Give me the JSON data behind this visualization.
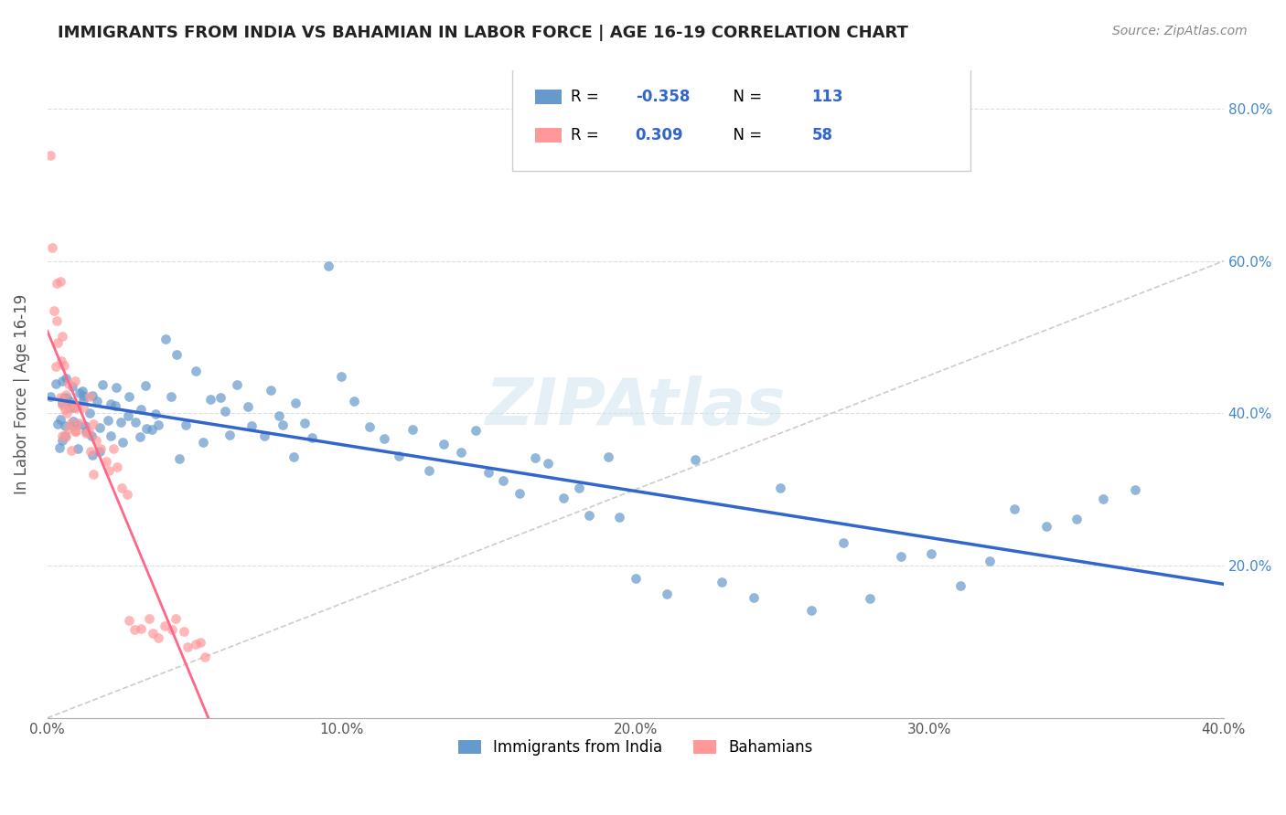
{
  "title": "IMMIGRANTS FROM INDIA VS BAHAMIAN IN LABOR FORCE | AGE 16-19 CORRELATION CHART",
  "source": "Source: ZipAtlas.com",
  "xlabel": "",
  "ylabel": "In Labor Force | Age 16-19",
  "xlim": [
    0.0,
    0.4
  ],
  "ylim": [
    0.0,
    0.85
  ],
  "xtick_labels": [
    "0.0%",
    "10.0%",
    "20.0%",
    "30.0%",
    "40.0%"
  ],
  "xtick_vals": [
    0.0,
    0.1,
    0.2,
    0.3,
    0.4
  ],
  "ytick_labels_left": [
    "",
    "20.0%",
    "40.0%",
    "60.0%",
    "80.0%"
  ],
  "ytick_vals": [
    0.0,
    0.2,
    0.4,
    0.6,
    0.8
  ],
  "legend_entry1": "R = -0.358   N = 113",
  "legend_entry2": "R =  0.309   N = 58",
  "india_color": "#6699cc",
  "bahamian_color": "#ff9999",
  "india_trend_color": "#3366cc",
  "bahamian_trend_color": "#ff6688",
  "india_R": -0.358,
  "india_N": 113,
  "bahamian_R": 0.309,
  "bahamian_N": 58,
  "watermark": "ZIPAtlas",
  "india_x": [
    0.002,
    0.003,
    0.003,
    0.004,
    0.004,
    0.005,
    0.005,
    0.005,
    0.006,
    0.006,
    0.006,
    0.007,
    0.007,
    0.007,
    0.008,
    0.008,
    0.009,
    0.009,
    0.01,
    0.01,
    0.01,
    0.011,
    0.011,
    0.012,
    0.012,
    0.013,
    0.013,
    0.014,
    0.015,
    0.015,
    0.016,
    0.017,
    0.018,
    0.018,
    0.019,
    0.02,
    0.021,
    0.022,
    0.023,
    0.024,
    0.025,
    0.026,
    0.027,
    0.028,
    0.03,
    0.031,
    0.032,
    0.033,
    0.034,
    0.035,
    0.037,
    0.038,
    0.04,
    0.042,
    0.044,
    0.046,
    0.048,
    0.05,
    0.053,
    0.055,
    0.058,
    0.06,
    0.063,
    0.065,
    0.068,
    0.07,
    0.073,
    0.075,
    0.078,
    0.08,
    0.083,
    0.085,
    0.088,
    0.09,
    0.095,
    0.1,
    0.105,
    0.11,
    0.115,
    0.12,
    0.125,
    0.13,
    0.135,
    0.14,
    0.145,
    0.15,
    0.155,
    0.16,
    0.165,
    0.17,
    0.175,
    0.18,
    0.185,
    0.19,
    0.195,
    0.2,
    0.21,
    0.22,
    0.23,
    0.24,
    0.25,
    0.26,
    0.27,
    0.28,
    0.29,
    0.3,
    0.31,
    0.32,
    0.33,
    0.34,
    0.35,
    0.36,
    0.37
  ],
  "india_y": [
    0.42,
    0.38,
    0.43,
    0.4,
    0.37,
    0.41,
    0.45,
    0.36,
    0.42,
    0.39,
    0.44,
    0.4,
    0.43,
    0.37,
    0.41,
    0.38,
    0.44,
    0.39,
    0.42,
    0.4,
    0.36,
    0.43,
    0.38,
    0.41,
    0.39,
    0.42,
    0.37,
    0.4,
    0.43,
    0.38,
    0.35,
    0.41,
    0.39,
    0.36,
    0.44,
    0.4,
    0.42,
    0.38,
    0.41,
    0.43,
    0.39,
    0.37,
    0.4,
    0.42,
    0.38,
    0.36,
    0.41,
    0.39,
    0.43,
    0.37,
    0.4,
    0.38,
    0.49,
    0.42,
    0.47,
    0.35,
    0.39,
    0.46,
    0.37,
    0.41,
    0.43,
    0.4,
    0.38,
    0.44,
    0.41,
    0.39,
    0.37,
    0.43,
    0.4,
    0.38,
    0.35,
    0.42,
    0.39,
    0.37,
    0.6,
    0.44,
    0.41,
    0.39,
    0.37,
    0.35,
    0.38,
    0.33,
    0.36,
    0.34,
    0.38,
    0.32,
    0.31,
    0.29,
    0.35,
    0.33,
    0.28,
    0.3,
    0.27,
    0.34,
    0.26,
    0.18,
    0.17,
    0.33,
    0.17,
    0.16,
    0.3,
    0.15,
    0.22,
    0.15,
    0.21,
    0.21,
    0.18,
    0.21,
    0.28,
    0.25,
    0.27,
    0.28,
    0.3
  ],
  "bahamian_x": [
    0.001,
    0.002,
    0.002,
    0.003,
    0.003,
    0.003,
    0.004,
    0.004,
    0.004,
    0.005,
    0.005,
    0.005,
    0.005,
    0.006,
    0.006,
    0.006,
    0.006,
    0.007,
    0.007,
    0.007,
    0.008,
    0.008,
    0.008,
    0.009,
    0.009,
    0.01,
    0.01,
    0.01,
    0.011,
    0.012,
    0.013,
    0.014,
    0.014,
    0.015,
    0.015,
    0.016,
    0.017,
    0.018,
    0.02,
    0.021,
    0.022,
    0.024,
    0.025,
    0.027,
    0.028,
    0.03,
    0.032,
    0.034,
    0.036,
    0.038,
    0.04,
    0.042,
    0.044,
    0.046,
    0.048,
    0.05,
    0.052,
    0.054
  ],
  "bahamian_y": [
    0.73,
    0.62,
    0.53,
    0.57,
    0.53,
    0.47,
    0.58,
    0.5,
    0.43,
    0.51,
    0.46,
    0.42,
    0.37,
    0.47,
    0.43,
    0.4,
    0.36,
    0.44,
    0.41,
    0.37,
    0.42,
    0.39,
    0.35,
    0.4,
    0.37,
    0.44,
    0.41,
    0.37,
    0.38,
    0.4,
    0.37,
    0.43,
    0.38,
    0.35,
    0.32,
    0.38,
    0.37,
    0.35,
    0.34,
    0.32,
    0.36,
    0.33,
    0.31,
    0.3,
    0.12,
    0.12,
    0.11,
    0.13,
    0.12,
    0.1,
    0.13,
    0.11,
    0.14,
    0.11,
    0.1,
    0.1,
    0.09,
    0.08
  ]
}
